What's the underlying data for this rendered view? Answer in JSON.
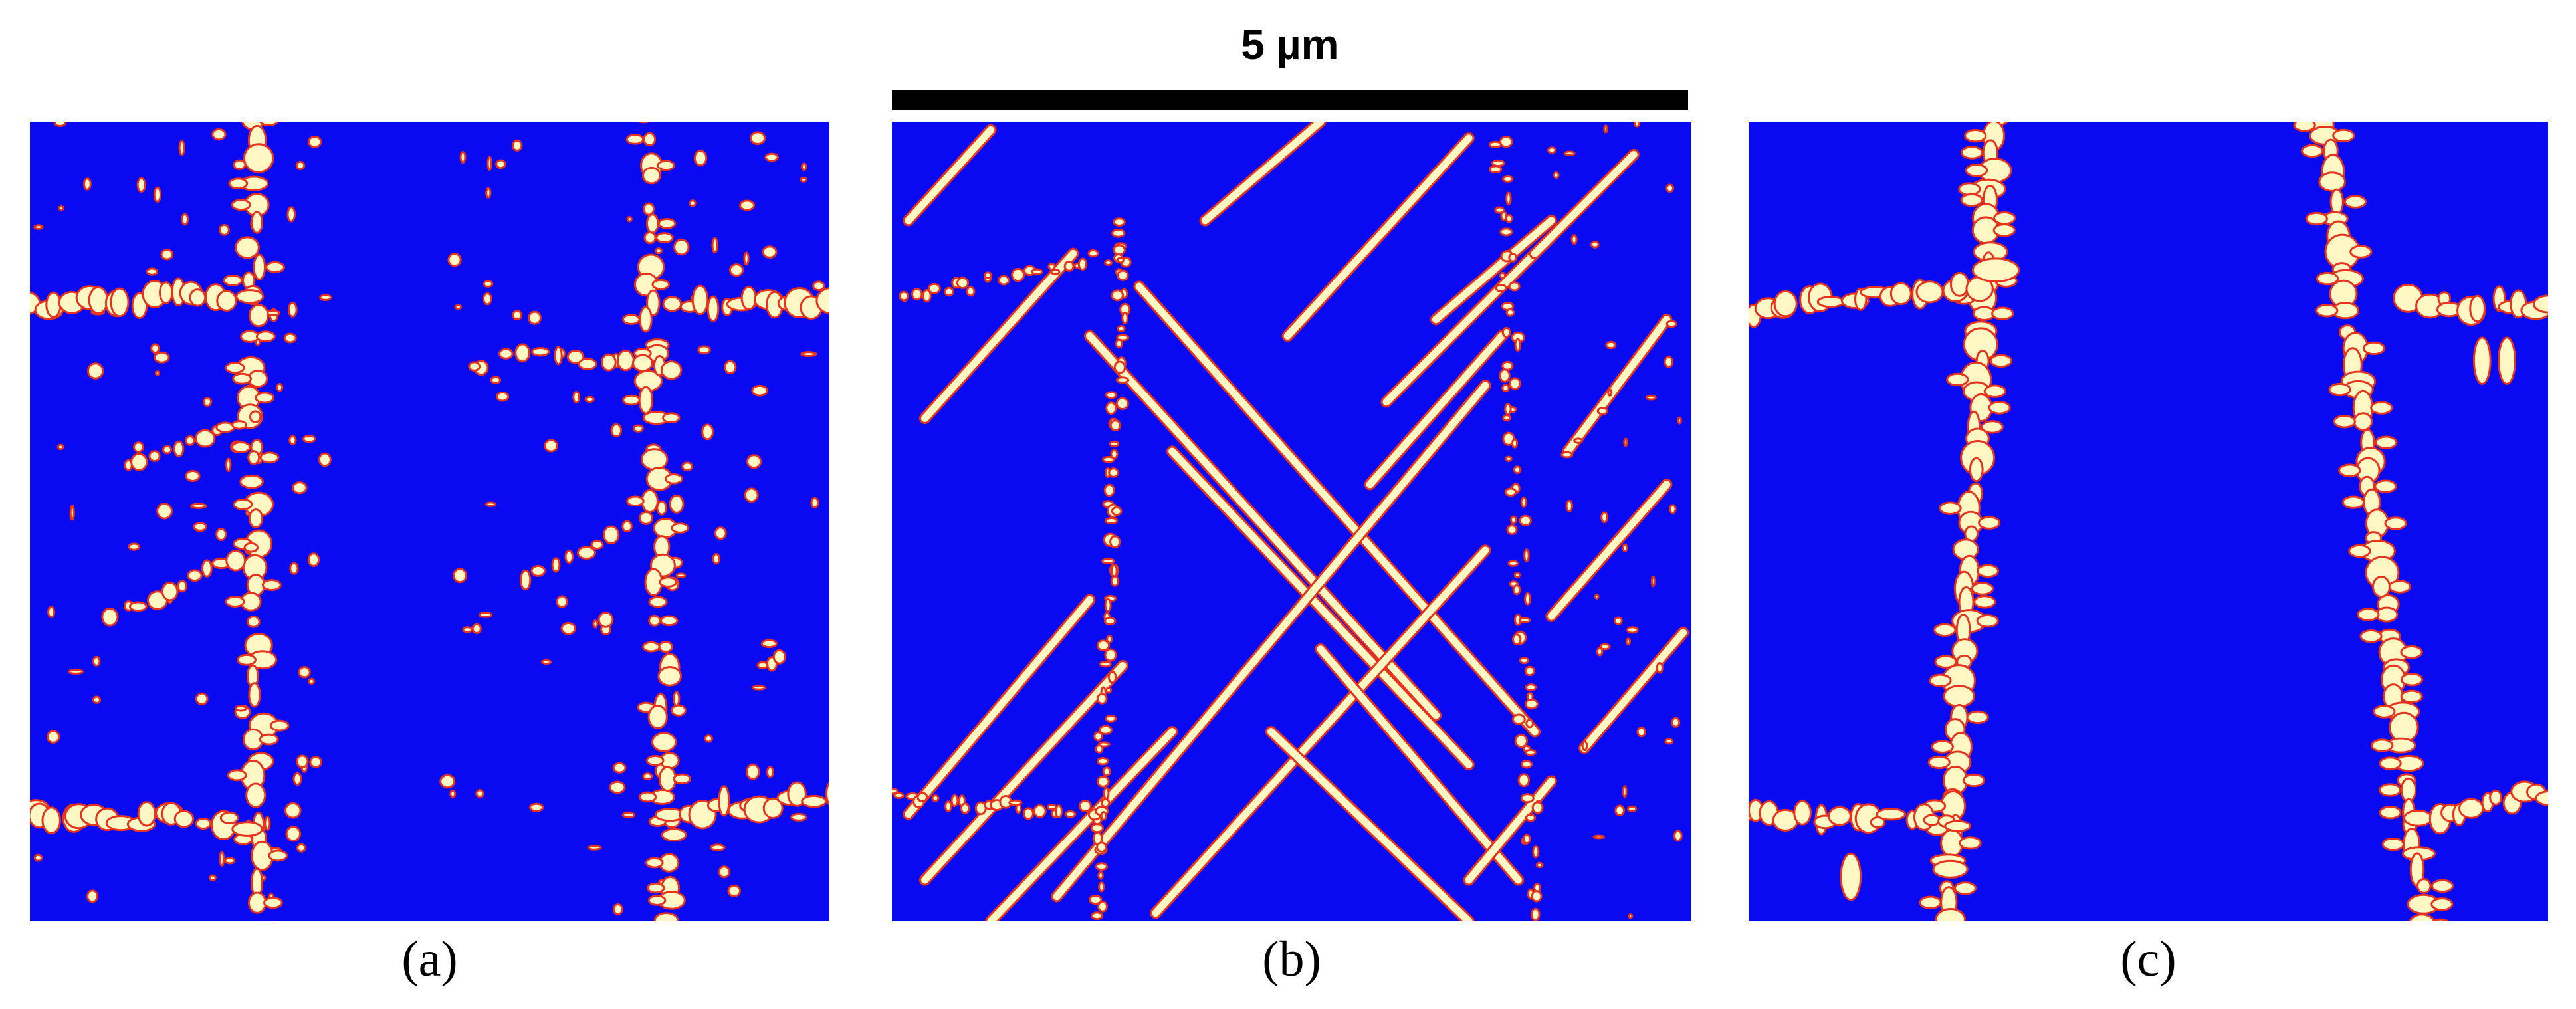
{
  "scale_bar": {
    "label": "5 µm"
  },
  "panels": [
    {
      "label": "(a)"
    },
    {
      "label": "(b)"
    },
    {
      "label": "(c)"
    }
  ]
}
